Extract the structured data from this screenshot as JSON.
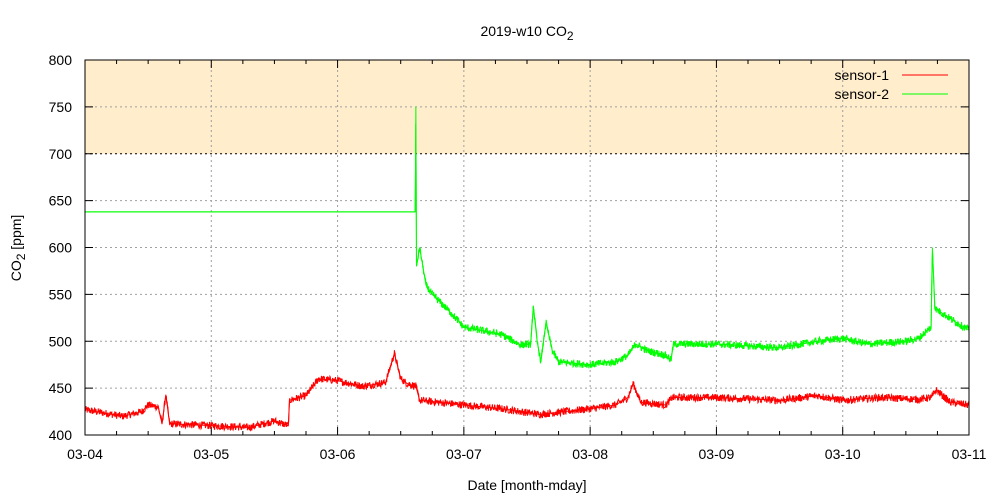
{
  "chart_data": {
    "type": "line",
    "title": "2019-w10 CO",
    "title_sub": "2",
    "xlabel": "Date [month-mday]",
    "ylabel": "CO",
    "ylabel_sub": "2",
    "ylabel_unit": " [ppm]",
    "x_unit": "days since 03-04 00:00",
    "xlim": [
      0,
      7
    ],
    "ylim": [
      400,
      800
    ],
    "x_ticks": [
      {
        "v": 0,
        "label": "03-04"
      },
      {
        "v": 1,
        "label": "03-05"
      },
      {
        "v": 2,
        "label": "03-06"
      },
      {
        "v": 3,
        "label": "03-07"
      },
      {
        "v": 4,
        "label": "03-08"
      },
      {
        "v": 5,
        "label": "03-09"
      },
      {
        "v": 6,
        "label": "03-10"
      },
      {
        "v": 7,
        "label": "03-11"
      }
    ],
    "x_minor_step": 0.25,
    "y_ticks": [
      400,
      450,
      500,
      550,
      600,
      650,
      700,
      750,
      800
    ],
    "grid": true,
    "threshold_band": {
      "from": 700,
      "to": 800,
      "color": "#ffedcc"
    },
    "legend_position": "top-right",
    "series": [
      {
        "name": "sensor-1",
        "color": "#ff0000",
        "noise_ppm": 4,
        "noise_from_day": 0,
        "points": [
          [
            0,
            427
          ],
          [
            0.3,
            420
          ],
          [
            0.45,
            425
          ],
          [
            0.5,
            432
          ],
          [
            0.58,
            430
          ],
          [
            0.61,
            412
          ],
          [
            0.64,
            443
          ],
          [
            0.67,
            412
          ],
          [
            1.0,
            410
          ],
          [
            1.3,
            408
          ],
          [
            1.5,
            415
          ],
          [
            1.61,
            410
          ],
          [
            1.62,
            437
          ],
          [
            1.75,
            442
          ],
          [
            1.85,
            460
          ],
          [
            2.0,
            458
          ],
          [
            2.2,
            452
          ],
          [
            2.38,
            456
          ],
          [
            2.45,
            487
          ],
          [
            2.5,
            460
          ],
          [
            2.55,
            455
          ],
          [
            2.62,
            452
          ],
          [
            2.65,
            437
          ],
          [
            3.0,
            432
          ],
          [
            3.3,
            428
          ],
          [
            3.6,
            422
          ],
          [
            3.8,
            425
          ],
          [
            4.0,
            428
          ],
          [
            4.2,
            432
          ],
          [
            4.3,
            440
          ],
          [
            4.34,
            455
          ],
          [
            4.4,
            435
          ],
          [
            4.6,
            432
          ],
          [
            4.65,
            440
          ],
          [
            5.0,
            440
          ],
          [
            5.5,
            437
          ],
          [
            5.8,
            442
          ],
          [
            6.0,
            437
          ],
          [
            6.3,
            440
          ],
          [
            6.6,
            438
          ],
          [
            6.7,
            440
          ],
          [
            6.74,
            448
          ],
          [
            6.85,
            435
          ],
          [
            7.0,
            432
          ]
        ]
      },
      {
        "name": "sensor-2",
        "color": "#00ff00",
        "noise_ppm": 4,
        "noise_from_day": 2.63,
        "points": [
          [
            0,
            638
          ],
          [
            2.615,
            638
          ],
          [
            2.62,
            750
          ],
          [
            2.625,
            580
          ],
          [
            2.65,
            600
          ],
          [
            2.7,
            560
          ],
          [
            2.75,
            550
          ],
          [
            2.9,
            530
          ],
          [
            3.0,
            515
          ],
          [
            3.2,
            510
          ],
          [
            3.3,
            507
          ],
          [
            3.45,
            496
          ],
          [
            3.53,
            497
          ],
          [
            3.55,
            538
          ],
          [
            3.58,
            500
          ],
          [
            3.61,
            478
          ],
          [
            3.65,
            520
          ],
          [
            3.7,
            490
          ],
          [
            3.75,
            478
          ],
          [
            4.0,
            475
          ],
          [
            4.2,
            478
          ],
          [
            4.3,
            485
          ],
          [
            4.36,
            497
          ],
          [
            4.45,
            490
          ],
          [
            4.6,
            485
          ],
          [
            4.64,
            480
          ],
          [
            4.66,
            497
          ],
          [
            5.0,
            497
          ],
          [
            5.5,
            493
          ],
          [
            5.8,
            500
          ],
          [
            6.0,
            503
          ],
          [
            6.2,
            497
          ],
          [
            6.5,
            500
          ],
          [
            6.6,
            503
          ],
          [
            6.7,
            515
          ],
          [
            6.71,
            600
          ],
          [
            6.73,
            535
          ],
          [
            6.9,
            520
          ],
          [
            7.0,
            512
          ]
        ]
      }
    ]
  }
}
